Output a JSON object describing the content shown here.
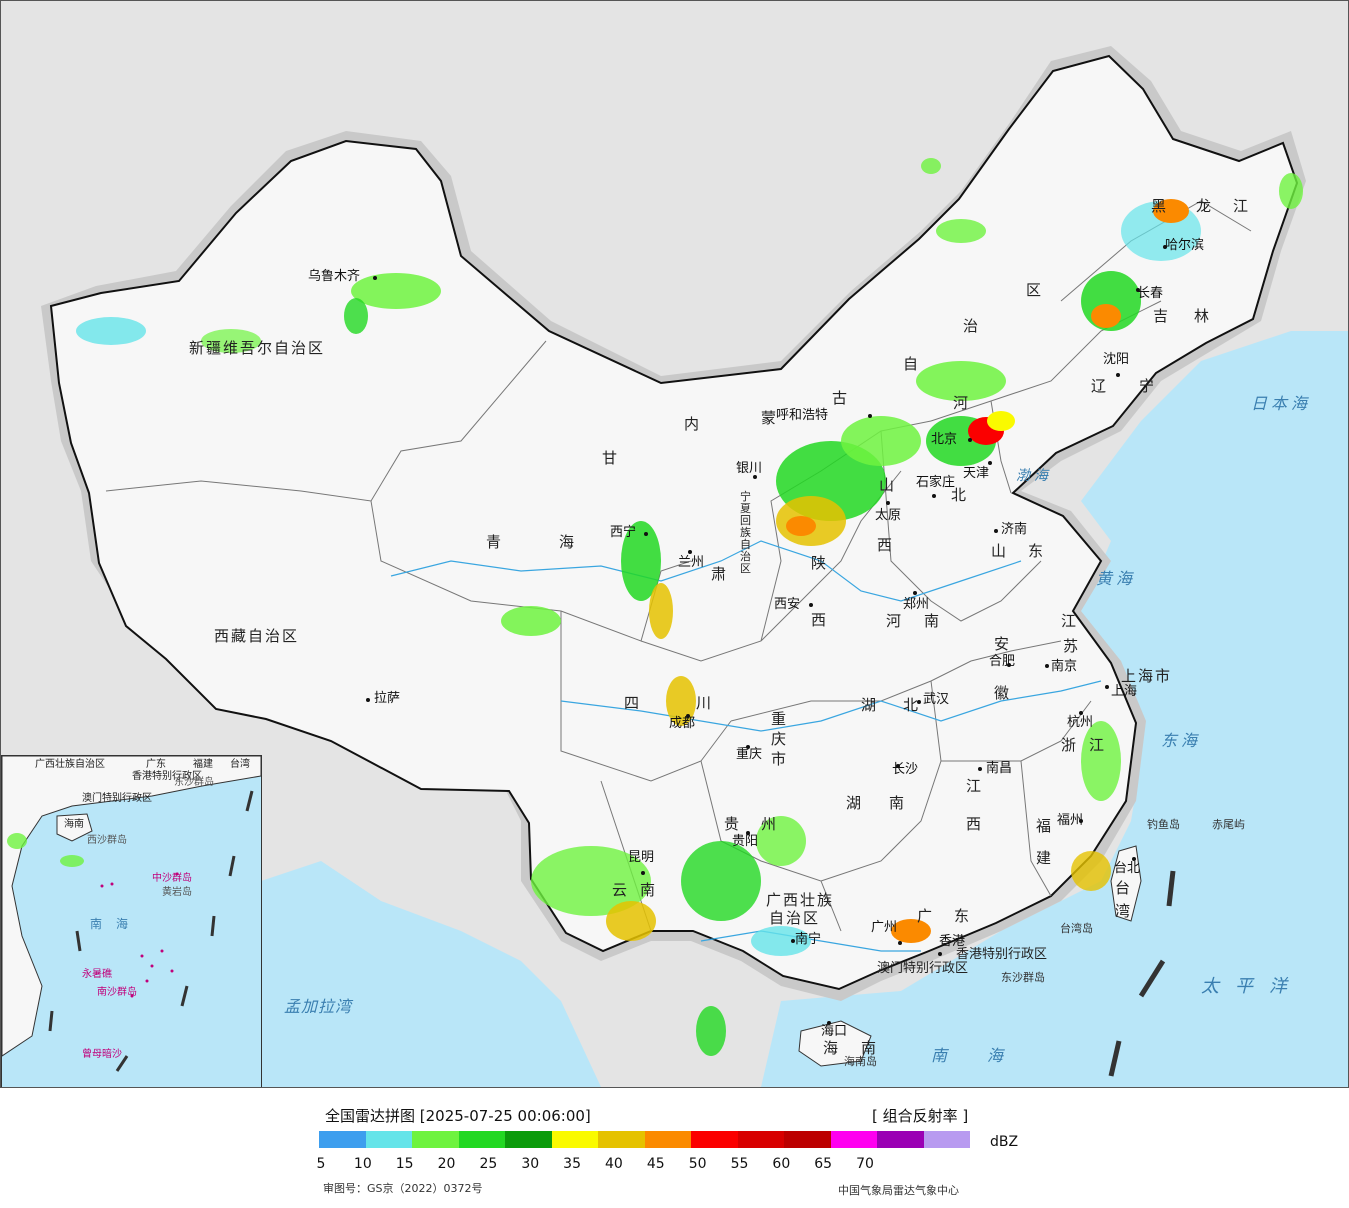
{
  "title": "全国雷达拼图 [2025-07-25 00:06:00]",
  "product": "[ 组合反射率 ]",
  "legend": {
    "unit": "dBZ",
    "ticks": [
      "5",
      "10",
      "15",
      "20",
      "25",
      "30",
      "35",
      "40",
      "45",
      "50",
      "55",
      "60",
      "65",
      "70"
    ],
    "colors": [
      "#3d9eee",
      "#65e4e9",
      "#6ef33f",
      "#22d822",
      "#0b9b0b",
      "#fafa00",
      "#e5c200",
      "#fb8a00",
      "#fb0000",
      "#d80000",
      "#bc0000",
      "#ff00f0",
      "#9a00b4",
      "#b89af0"
    ]
  },
  "approval": "审图号：GS京（2022）0372号",
  "credit": "中国气象局雷达气象中心",
  "provinces": [
    {
      "name": "新疆维吾尔自治区"
    },
    {
      "name": "西藏自治区"
    },
    {
      "name": "青"
    },
    {
      "name": "海"
    },
    {
      "name": "甘"
    },
    {
      "name": "肃"
    },
    {
      "name": "内"
    },
    {
      "name": "蒙"
    },
    {
      "name": "古"
    },
    {
      "name": "自"
    },
    {
      "name": "治"
    },
    {
      "name": "区"
    },
    {
      "name": "黑"
    },
    {
      "name": "龙"
    },
    {
      "name": "江"
    },
    {
      "name": "吉"
    },
    {
      "name": "林"
    },
    {
      "name": "辽"
    },
    {
      "name": "宁"
    },
    {
      "name": "河"
    },
    {
      "name": "北"
    },
    {
      "name": "山"
    },
    {
      "name": "西"
    },
    {
      "name": "陕"
    },
    {
      "name": "西"
    },
    {
      "name": "山"
    },
    {
      "name": "东"
    },
    {
      "name": "河"
    },
    {
      "name": "南"
    },
    {
      "name": "江"
    },
    {
      "name": "苏"
    },
    {
      "name": "安"
    },
    {
      "name": "徽"
    },
    {
      "name": "湖"
    },
    {
      "name": "北"
    },
    {
      "name": "四"
    },
    {
      "name": "川"
    },
    {
      "name": "重庆市"
    },
    {
      "name": "湖"
    },
    {
      "name": "南"
    },
    {
      "name": "江"
    },
    {
      "name": "西"
    },
    {
      "name": "浙"
    },
    {
      "name": "江"
    },
    {
      "name": "福"
    },
    {
      "name": "建"
    },
    {
      "name": "贵"
    },
    {
      "name": "州"
    },
    {
      "name": "云"
    },
    {
      "name": "南"
    },
    {
      "name": "广西壮族"
    },
    {
      "name": "自治区"
    },
    {
      "name": "广"
    },
    {
      "name": "东"
    },
    {
      "name": "海"
    },
    {
      "name": "南"
    },
    {
      "name": "台"
    },
    {
      "name": "湾"
    },
    {
      "name": "上海市"
    },
    {
      "name": "香港特别行政区"
    },
    {
      "name": "澳门特别行政区"
    },
    {
      "name": "宁夏回族自治区"
    }
  ],
  "cities": [
    "乌鲁木齐",
    "拉萨",
    "西宁",
    "兰州",
    "银川",
    "呼和浩特",
    "北京",
    "天津",
    "石家庄",
    "太原",
    "济南",
    "郑州",
    "西安",
    "合肥",
    "南京",
    "上海",
    "杭州",
    "武汉",
    "成都",
    "重庆",
    "长沙",
    "南昌",
    "福州",
    "台北",
    "贵阳",
    "昆明",
    "南宁",
    "广州",
    "香港",
    "海口",
    "沈阳",
    "长春",
    "哈尔滨"
  ],
  "seas": [
    "渤海",
    "黄海",
    "东海",
    "日本海",
    "太平洋",
    "南海",
    "孟加拉湾"
  ],
  "islands": [
    "钓鱼岛",
    "赤尾屿",
    "东沙群岛",
    "台湾岛",
    "海南岛"
  ],
  "inset": {
    "labels": [
      "广西壮族自治区",
      "广东",
      "福建",
      "台湾",
      "香港特别行政区",
      "澳门特别行政区",
      "海南",
      "南海",
      "东沙群岛",
      "西沙群岛",
      "中沙群岛",
      "黄岩岛",
      "南沙群岛",
      "永暑礁",
      "曾母暗沙"
    ]
  }
}
